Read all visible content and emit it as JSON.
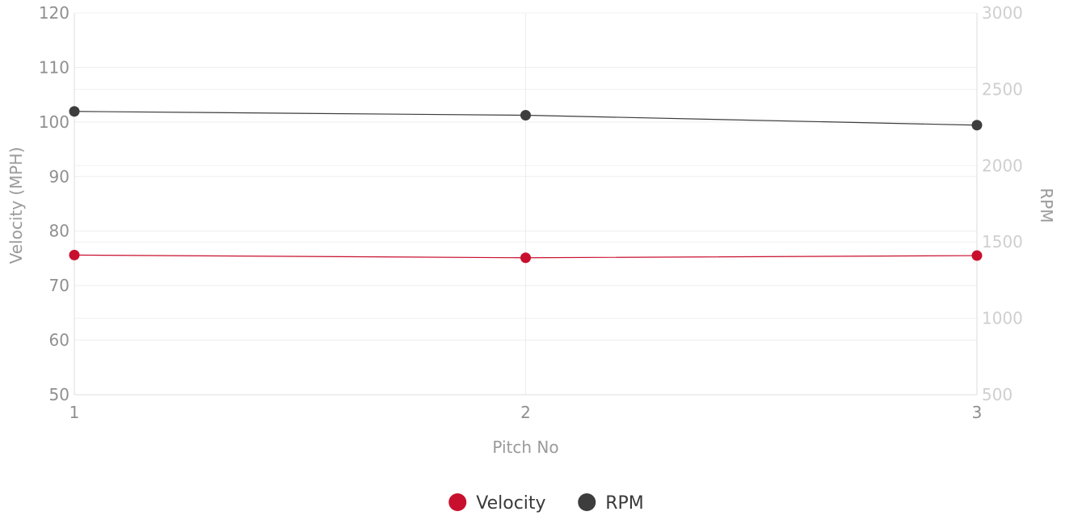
{
  "chart_data": {
    "type": "line",
    "x": [
      1,
      2,
      3
    ],
    "xlabel": "Pitch No",
    "y_left_label": "Velocity (MPH)",
    "y_right_label": "RPM",
    "y_left_range": [
      50,
      120
    ],
    "y_left_ticks": [
      50,
      60,
      70,
      80,
      90,
      100,
      110,
      120
    ],
    "y_right_range": [
      500,
      3000
    ],
    "y_right_ticks": [
      500,
      1000,
      1500,
      2000,
      2500,
      3000
    ],
    "x_ticks": [
      "1",
      "2",
      "3"
    ],
    "grid": true,
    "legend_position": "bottom",
    "series": [
      {
        "name": "Velocity",
        "axis": "left",
        "color": "#c8102e",
        "values": [
          75.6,
          75.1,
          75.5
        ]
      },
      {
        "name": "RPM",
        "axis": "right",
        "color": "#3d3d3d",
        "values": [
          2355,
          2330,
          2265
        ]
      }
    ]
  }
}
